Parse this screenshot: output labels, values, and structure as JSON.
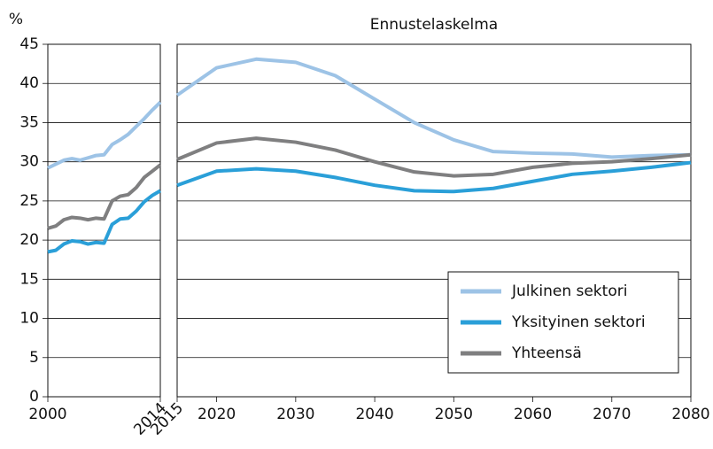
{
  "chart_data": [
    {
      "type": "line",
      "ylabel": "%",
      "x": [
        2000,
        2001,
        2002,
        2003,
        2004,
        2005,
        2006,
        2007,
        2008,
        2009,
        2010,
        2011,
        2012,
        2013,
        2014
      ],
      "xlim": [
        2000,
        2014
      ],
      "xticks": [
        2000,
        2014
      ],
      "ylim": [
        0,
        45
      ],
      "yticks": [
        0,
        5,
        10,
        15,
        20,
        25,
        30,
        35,
        40,
        45
      ],
      "grid": true,
      "series": [
        {
          "name": "Julkinen sektori",
          "color": "#9dc3e6",
          "values": [
            29.2,
            29.7,
            30.2,
            30.4,
            30.2,
            30.5,
            30.8,
            30.9,
            32.2,
            32.8,
            33.5,
            34.5,
            35.5,
            36.6,
            37.6
          ]
        },
        {
          "name": "Yksityinen sektori",
          "color": "#2a9fd8",
          "values": [
            18.5,
            18.7,
            19.5,
            19.9,
            19.8,
            19.5,
            19.7,
            19.6,
            22.0,
            22.7,
            22.8,
            23.7,
            24.9,
            25.7,
            26.3
          ]
        },
        {
          "name": "Yhteensä",
          "color": "#7f7f80",
          "values": [
            21.5,
            21.8,
            22.6,
            22.9,
            22.8,
            22.6,
            22.8,
            22.7,
            25.0,
            25.6,
            25.8,
            26.7,
            28.0,
            28.8,
            29.6
          ]
        }
      ]
    },
    {
      "type": "line",
      "title": "Ennustelaskelma",
      "x": [
        2015,
        2020,
        2025,
        2030,
        2035,
        2040,
        2045,
        2050,
        2055,
        2060,
        2065,
        2070,
        2075,
        2080
      ],
      "xlim": [
        2015,
        2080
      ],
      "xticks": [
        2015,
        2020,
        2030,
        2040,
        2050,
        2060,
        2070,
        2080
      ],
      "ylim": [
        0,
        45
      ],
      "yticks": [
        0,
        5,
        10,
        15,
        20,
        25,
        30,
        35,
        40,
        45
      ],
      "grid": true,
      "legend": "lower right",
      "series": [
        {
          "name": "Julkinen sektori",
          "color": "#9dc3e6",
          "values": [
            38.5,
            42.0,
            43.1,
            42.7,
            41.0,
            38.0,
            35.0,
            32.8,
            31.3,
            31.1,
            31.0,
            30.6,
            30.8,
            30.9
          ]
        },
        {
          "name": "Yksityinen sektori",
          "color": "#2a9fd8",
          "values": [
            27.0,
            28.8,
            29.1,
            28.8,
            28.0,
            27.0,
            26.3,
            26.2,
            26.6,
            27.5,
            28.4,
            28.8,
            29.3,
            29.9
          ]
        },
        {
          "name": "Yhteensä",
          "color": "#7f7f80",
          "values": [
            30.3,
            32.4,
            33.0,
            32.5,
            31.5,
            30.0,
            28.7,
            28.2,
            28.4,
            29.3,
            29.8,
            30.0,
            30.4,
            30.9
          ]
        }
      ]
    }
  ]
}
